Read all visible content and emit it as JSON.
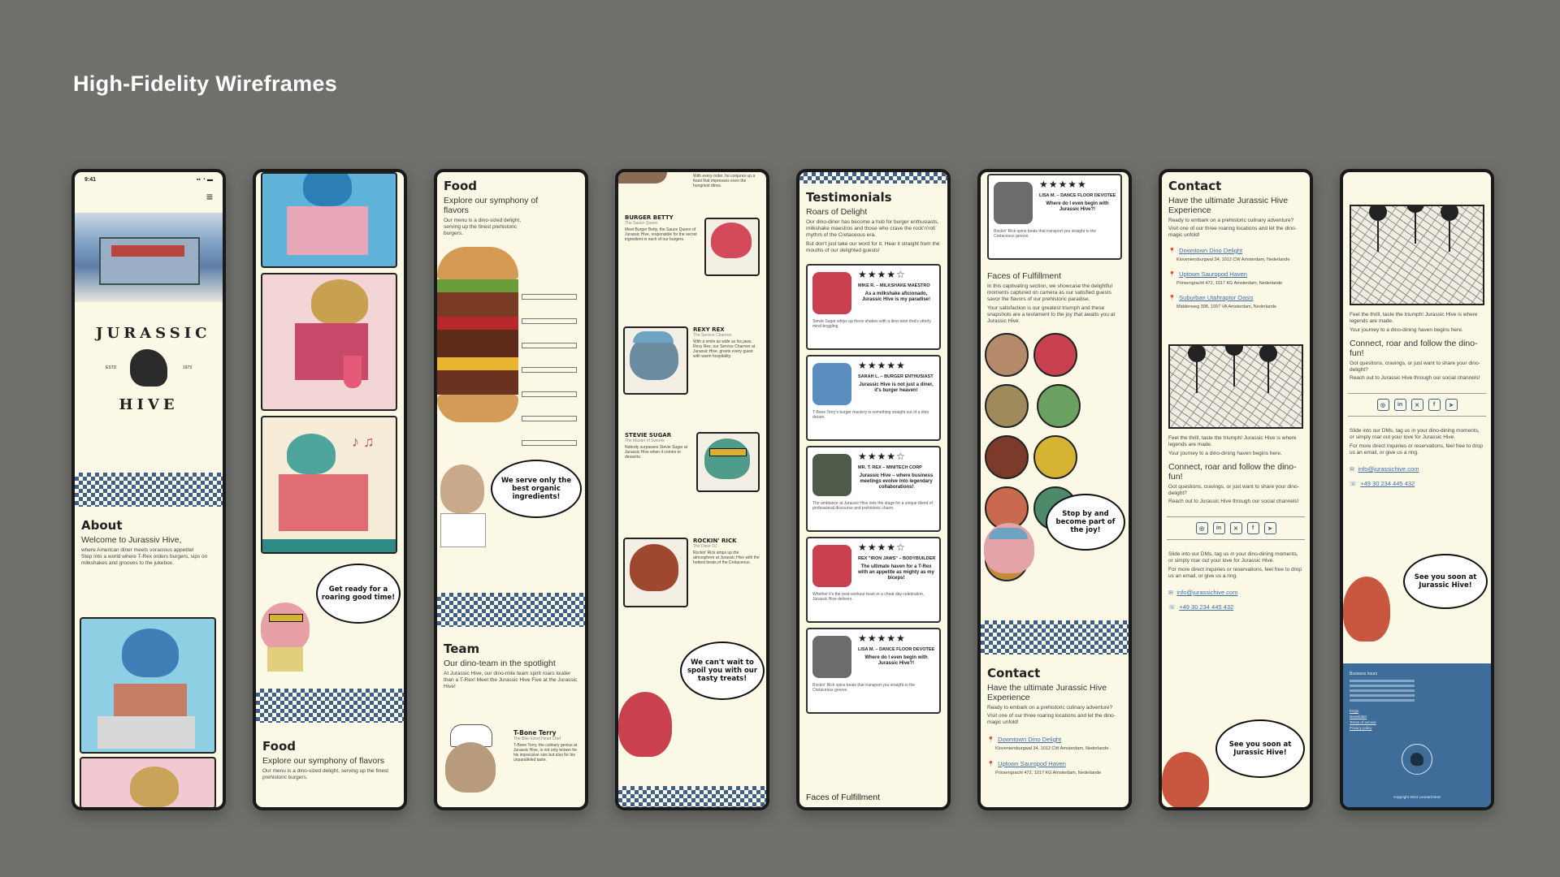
{
  "page_title": "High-Fidelity Wireframes",
  "screen1": {
    "time": "9:41",
    "logo_top": "JURASSIC",
    "logo_bottom": "HIVE",
    "est": "ESTD",
    "year": "1973",
    "about_heading": "About",
    "about_sub": "Welcome to Jurassiv Hive,",
    "about_line1": "where American diner meets voracious appetite!",
    "about_line2": "Step into a world where T-Rex orders burgers, sips on milkshakes and grooves to the jukebox."
  },
  "screen2": {
    "bubble": "Get ready for a roaring good time!",
    "food_heading": "Food",
    "food_sub": "Explore our symphony of flavors",
    "food_body": "Our menu is a dino-sized delight, serving up the finest prehistoric burgers."
  },
  "screen3": {
    "food_heading": "Food",
    "food_sub": "Explore our symphony of flavors",
    "food_body": "Our menu is a dino-sized delight, serving up the finest prehistoric burgers.",
    "bubble1": "We serve only the best organic ingredients!",
    "team_heading": "Team",
    "team_sub": "Our dino-team in the spotlight",
    "team_body": "At Jurassic Hive, our dino-mite team spirit roars louder than a T-Rex! Meet the Jurassic Hive Five at the Jurassic Hive!",
    "member_name": "T-Bone Terry",
    "member_role": "The Bite-Sized Head Chef",
    "member_body": "T-Bone Terry, the culinary genius at Jurassic Hive, is not only known for his impressive size but also for his unparalleled taste."
  },
  "screen4": {
    "top_text": "With every order, he conjures up a feast that impresses even the hungriest dinos.",
    "m1_name": "Burger Betty",
    "m1_role": "The Sauce Queen",
    "m1_body": "Meet Burger Betty, the Sauce Queen of Jurassic Hive, responsible for the secret ingredient in each of our burgers.",
    "m2_name": "Rexy Rex",
    "m2_role": "The Service Charmer",
    "m2_body": "With a smile as wide as his jaws, Rexy Rex, our Service Charmer at Jurassic Hive, greets every guest with warm hospitality.",
    "m3_name": "Stevie Sugar",
    "m3_role": "The Master of Sweets",
    "m3_body": "Nobody surpasses Stevie Sugar at Jurassic Hive when it comes to desserts.",
    "m4_name": "Rockin' Rick",
    "m4_role": "The Diner DJ",
    "m4_body": "Rockin' Rick amps up the atmosphere at Jurassic Hive with the hottest beats of the Cretaceous.",
    "bubble": "We can't wait to spoil you with our tasty treats!"
  },
  "screen5": {
    "heading": "Testimonials",
    "sub": "Roars of Delight",
    "body": "Our dino-diner has become a hub for burger enthusiasts, milkshake maestros and those who crave the rock'n'roll rhythm of the Cretaceous era.",
    "body2": "But don't just take our word for it. Hear it straight from the mouths of our delighted guests!",
    "cards": [
      {
        "stars": "★★★★☆",
        "name": "MIKE R. – MILKSHAKE MAESTRO",
        "quote": "As a milkshake aficionado, Jurassic Hive is my paradise!",
        "body": "Stevie Sugar whips up these shakes with a dino-twist that's utterly mind-boggling."
      },
      {
        "stars": "★★★★★",
        "name": "SARAH L. – BURGER ENTHUSIAST",
        "quote": "Jurassic Hive is not just a diner, it's burger heaven!",
        "body": "T-Bone Terry's burger mastery is something straight out of a dino dream."
      },
      {
        "stars": "★★★★☆",
        "name": "MR. T. REX – MINITECH CORP",
        "quote": "Jurassic Hive – where business meetings evolve into legendary collaborations!",
        "body": "The ambiance at Jurassic Hive sets the stage for a unique blend of professional discourse and prehistoric charm."
      },
      {
        "stars": "★★★★☆",
        "name": "REX \"IRON JAWS\" – BODYBUILDER",
        "quote": "The ultimate haven for a T-Rex with an appetite as mighty as my biceps!",
        "body": "Whether it's the post-workout feast or a cheat day celebration, Jurassic Hive delivers."
      },
      {
        "stars": "★★★★★",
        "name": "LISA M. – DANCE FLOOR DEVOTEE",
        "quote": "Where do I even begin with Jurassic Hive?!",
        "body": "Rockin' Rick spins beats that transport you straight to the Cretaceous groove."
      }
    ],
    "bottom": "Faces of Fulfillment"
  },
  "screen6": {
    "card": {
      "stars": "★★★★★",
      "name": "LISA M. – DANCE FLOOR DEVOTEE",
      "quote": "Where do I even begin with Jurassic Hive?!",
      "body": "Rockin' Rick spins beats that transport you straight to the Cretaceous groove."
    },
    "heading": "Faces of Fulfillment",
    "body": "In this captivating section, we showcase the delightful moments captured on camera as our satisfied guests savor the flavors of our prehistoric paradise.",
    "body2": "Your satisfaction is our greatest triumph and these snapshots are a testament to the joy that awaits you at Jurassic Hive.",
    "bubble": "Stop by and become part of the joy!",
    "contact_heading": "Contact",
    "contact_sub": "Have the ultimate Jurassic Hive Experience",
    "contact_body": "Ready to embark on a prehistoric culinary adventure?",
    "contact_body2": "Visit one of our three roaring locations and let the dino-magic unfold!",
    "loc1": "Downtown Dino Delight",
    "loc1_addr": "Kloveniersburgwal 34, 1012 CW Amsterdam, Nederlande",
    "loc2": "Uptown Sauropod Haven",
    "loc2_addr": "Prinsengracht 472, 1017 KG Amsterdam, Nederlande"
  },
  "screen7": {
    "heading": "Contact",
    "sub": "Have the ultimate Jurassic Hive Experience",
    "body": "Ready to embark on a prehistoric culinary adventure?",
    "body2": "Visit one of our three roaring locations and let the dino-magic unfold!",
    "loc1": "Downtown Dino Delight",
    "loc1_addr": "Kloveniersburgwal 34, 1012 CW Amsterdam, Nederlande",
    "loc2": "Uptown Sauropod Haven",
    "loc2_addr": "Prinsengracht 472, 1017 KG Amsterdam, Nederlande",
    "loc3": "Suburban Utahraptor Oasis",
    "loc3_addr": "Middenweg 398, 1097 VA Amsterdam, Nederlande",
    "map_text": "Feel the thrill, taste the triumph! Jurassic Hive is where legends are made.",
    "map_text2": "Your journey to a dino-dining haven begins here.",
    "connect": "Connect, roar and follow the dino-fun!",
    "connect_body": "Got questions, cravings, or just want to share your dino-delight?",
    "connect_body2": "Reach out to Jurassic Hive through our social channels!",
    "dm": "Slide into our DMs, tag us in your dino-dining moments, or simply roar out your love for Jurassic Hive.",
    "inquiry": "For more direct inquiries or reservations, feel free to drop us an email, or give us a ring.",
    "email": "info@jurassichive.com",
    "phone": "+49 30 234 445 432",
    "bubble": "See you soon at Jurassic Hive!"
  },
  "screen8": {
    "map_text": "Feel the thrill, taste the triumph! Jurassic Hive is where legends are made.",
    "map_text2": "Your journey to a dino-dining haven begins here.",
    "connect": "Connect, roar and follow the dino-fun!",
    "connect_body": "Got questions, cravings, or just want to share your dino-delight?",
    "connect_body2": "Reach out to Jurassic Hive through our social channels!",
    "dm": "Slide into our DMs, tag us in your dino-dining moments, or simply roar out your love for Jurassic Hive.",
    "inquiry": "For more direct inquiries or reservations, feel free to drop us an email, or give us a ring.",
    "email": "info@jurassichive.com",
    "phone": "+49 30 234 445 432",
    "bubble": "See you soon at Jurassic Hive!",
    "footer_hours_title": "Business hours",
    "footer_links": [
      "FAQs",
      "Newsletter",
      "Terms of service",
      "Privacy policy"
    ],
    "copyright": "Copyright 2024 Leonard Betz"
  }
}
